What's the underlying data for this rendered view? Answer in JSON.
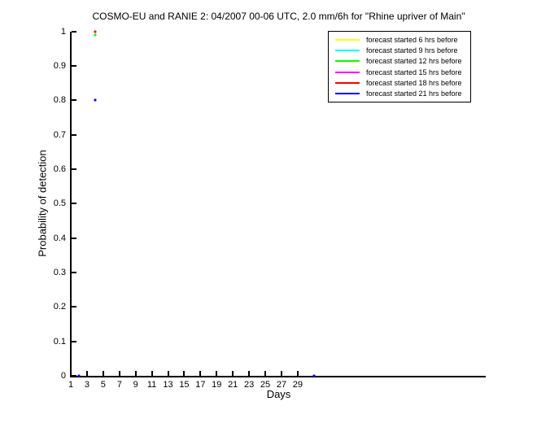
{
  "figure": {
    "background": "#ffffff",
    "axis_color": "#000000",
    "text_color": "#000000"
  },
  "chart_data": {
    "type": "scatter",
    "title": "COSMO-EU and RANIE 2: 04/2007 00-06 UTC, 2.0 mm/6h for \"Rhine upriver of Main\"",
    "xlabel": "Days",
    "ylabel": "Probability of detection",
    "xlim": [
      1,
      52
    ],
    "ylim": [
      0,
      1
    ],
    "xticks": [
      1,
      3,
      5,
      7,
      9,
      11,
      13,
      15,
      17,
      19,
      21,
      23,
      25,
      27,
      29
    ],
    "ytick_labels": [
      "0",
      "0.1",
      "0.2",
      "0.3",
      "0.4",
      "0.5",
      "0.6",
      "0.7",
      "0.8",
      "0.9",
      "1"
    ],
    "grid": false,
    "box": false,
    "marker": "point",
    "legend_position": "top-right",
    "series": [
      {
        "name": "forecast started 6 hrs before",
        "color": "#ffff00",
        "points": []
      },
      {
        "name": "forecast started 9 hrs before",
        "color": "#00ffff",
        "points": []
      },
      {
        "name": "forecast started 12 hrs before",
        "color": "#00ff00",
        "points": [
          {
            "x": 4,
            "y": 0.99
          }
        ]
      },
      {
        "name": "forecast started 15 hrs before",
        "color": "#ff00ff",
        "points": []
      },
      {
        "name": "forecast started 18 hrs before",
        "color": "#ff0000",
        "points": [
          {
            "x": 4,
            "y": 1.0
          }
        ]
      },
      {
        "name": "forecast started 21 hrs before",
        "color": "#0000ff",
        "points": [
          {
            "x": 2,
            "y": 0.0
          },
          {
            "x": 4,
            "y": 0.8
          },
          {
            "x": 31,
            "y": 0.0
          }
        ]
      }
    ]
  }
}
